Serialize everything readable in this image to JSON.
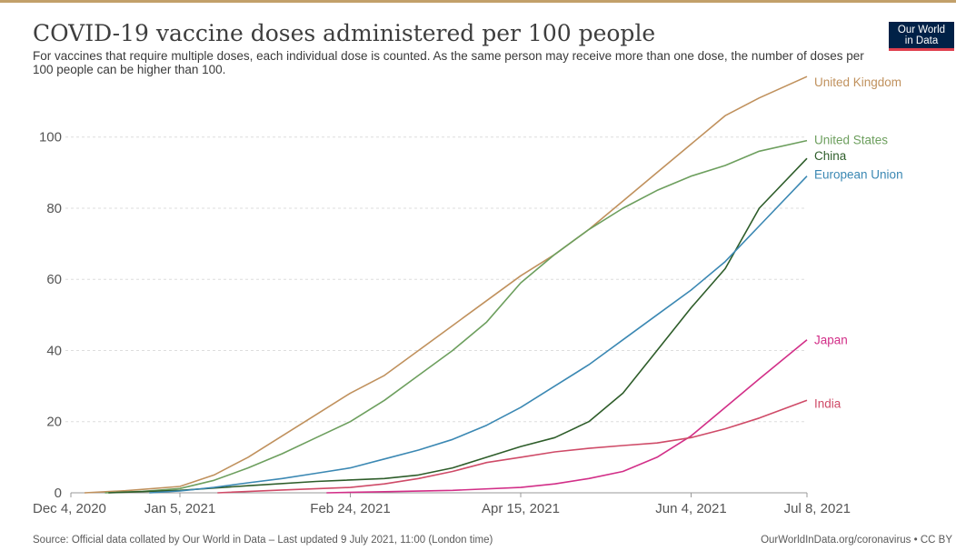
{
  "logo": {
    "line1": "Our World",
    "line2": "in Data"
  },
  "footer": {
    "source": "Source: Official data collated by Our World in Data – Last updated 9 July 2021, 11:00 (London time)",
    "link": "OurWorldInData.org/coronavirus • CC BY"
  },
  "chart_data": {
    "type": "line",
    "title": "COVID-19 vaccine doses administered per 100 people",
    "subtitle": "For vaccines that require multiple doses, each individual dose is counted. As the same person may receive more than one dose, the number of doses per 100 people can be higher than 100.",
    "xlabel": "",
    "ylabel": "",
    "x_ticks": [
      "Dec 4, 2020",
      "Jan 5, 2021",
      "Feb 24, 2021",
      "Apr 15, 2021",
      "Jun 4, 2021",
      "Jul 8, 2021"
    ],
    "xlim": [
      "2020-12-04",
      "2021-07-08"
    ],
    "y_ticks": [
      0,
      20,
      40,
      60,
      80,
      100
    ],
    "ylim": [
      0,
      115
    ],
    "grid": "horizontal dashed",
    "legend": "inline labels at line ends (right)",
    "series": [
      {
        "name": "United Kingdom",
        "color": "#c0915d",
        "points": [
          [
            "2020-12-08",
            0
          ],
          [
            "2020-12-20",
            0.6
          ],
          [
            "2021-01-05",
            1.8
          ],
          [
            "2021-01-15",
            5
          ],
          [
            "2021-01-25",
            10
          ],
          [
            "2021-02-04",
            16
          ],
          [
            "2021-02-14",
            22
          ],
          [
            "2021-02-24",
            28
          ],
          [
            "2021-03-06",
            33
          ],
          [
            "2021-03-16",
            40
          ],
          [
            "2021-03-26",
            47
          ],
          [
            "2021-04-05",
            54
          ],
          [
            "2021-04-15",
            61
          ],
          [
            "2021-04-25",
            67
          ],
          [
            "2021-05-05",
            74
          ],
          [
            "2021-05-15",
            82
          ],
          [
            "2021-05-25",
            90
          ],
          [
            "2021-06-04",
            98
          ],
          [
            "2021-06-14",
            106
          ],
          [
            "2021-06-24",
            111
          ],
          [
            "2021-07-08",
            117
          ]
        ]
      },
      {
        "name": "United States",
        "color": "#6d9f5e",
        "points": [
          [
            "2020-12-14",
            0
          ],
          [
            "2020-12-25",
            0.4
          ],
          [
            "2021-01-05",
            1.2
          ],
          [
            "2021-01-15",
            3.5
          ],
          [
            "2021-01-25",
            7
          ],
          [
            "2021-02-04",
            11
          ],
          [
            "2021-02-14",
            15.5
          ],
          [
            "2021-02-24",
            20
          ],
          [
            "2021-03-06",
            26
          ],
          [
            "2021-03-16",
            33
          ],
          [
            "2021-03-26",
            40
          ],
          [
            "2021-04-05",
            48
          ],
          [
            "2021-04-15",
            59
          ],
          [
            "2021-04-25",
            67
          ],
          [
            "2021-05-05",
            74
          ],
          [
            "2021-05-15",
            80
          ],
          [
            "2021-05-25",
            85
          ],
          [
            "2021-06-04",
            89
          ],
          [
            "2021-06-14",
            92
          ],
          [
            "2021-06-24",
            96
          ],
          [
            "2021-07-08",
            99
          ]
        ]
      },
      {
        "name": "China",
        "color": "#2e5d2a",
        "points": [
          [
            "2020-12-15",
            0
          ],
          [
            "2021-01-05",
            0.7
          ],
          [
            "2021-01-25",
            2
          ],
          [
            "2021-02-14",
            3.2
          ],
          [
            "2021-03-06",
            4
          ],
          [
            "2021-03-16",
            5
          ],
          [
            "2021-03-26",
            7
          ],
          [
            "2021-04-05",
            10
          ],
          [
            "2021-04-15",
            13
          ],
          [
            "2021-04-25",
            15.5
          ],
          [
            "2021-05-05",
            20
          ],
          [
            "2021-05-15",
            28
          ],
          [
            "2021-05-25",
            40
          ],
          [
            "2021-06-04",
            52
          ],
          [
            "2021-06-14",
            63
          ],
          [
            "2021-06-24",
            80
          ],
          [
            "2021-07-08",
            94
          ]
        ]
      },
      {
        "name": "European Union",
        "color": "#3b88b3",
        "points": [
          [
            "2020-12-27",
            0
          ],
          [
            "2021-01-05",
            0.5
          ],
          [
            "2021-01-15",
            1.5
          ],
          [
            "2021-01-25",
            2.8
          ],
          [
            "2021-02-04",
            4
          ],
          [
            "2021-02-14",
            5.5
          ],
          [
            "2021-02-24",
            7
          ],
          [
            "2021-03-06",
            9.5
          ],
          [
            "2021-03-16",
            12
          ],
          [
            "2021-03-26",
            15
          ],
          [
            "2021-04-05",
            19
          ],
          [
            "2021-04-15",
            24
          ],
          [
            "2021-04-25",
            30
          ],
          [
            "2021-05-05",
            36
          ],
          [
            "2021-05-15",
            43
          ],
          [
            "2021-05-25",
            50
          ],
          [
            "2021-06-04",
            57
          ],
          [
            "2021-06-14",
            65
          ],
          [
            "2021-06-24",
            75
          ],
          [
            "2021-07-08",
            89
          ]
        ]
      },
      {
        "name": "Japan",
        "color": "#d22f88",
        "points": [
          [
            "2021-02-17",
            0
          ],
          [
            "2021-03-06",
            0.3
          ],
          [
            "2021-03-26",
            0.7
          ],
          [
            "2021-04-15",
            1.5
          ],
          [
            "2021-04-25",
            2.5
          ],
          [
            "2021-05-05",
            4
          ],
          [
            "2021-05-15",
            6
          ],
          [
            "2021-05-25",
            10
          ],
          [
            "2021-06-04",
            16
          ],
          [
            "2021-06-14",
            24
          ],
          [
            "2021-06-24",
            32
          ],
          [
            "2021-07-08",
            43
          ]
        ]
      },
      {
        "name": "India",
        "color": "#cf4b68",
        "points": [
          [
            "2021-01-16",
            0
          ],
          [
            "2021-02-04",
            0.8
          ],
          [
            "2021-02-24",
            1.5
          ],
          [
            "2021-03-06",
            2.5
          ],
          [
            "2021-03-16",
            4
          ],
          [
            "2021-03-26",
            6
          ],
          [
            "2021-04-05",
            8.5
          ],
          [
            "2021-04-15",
            10
          ],
          [
            "2021-04-25",
            11.5
          ],
          [
            "2021-05-05",
            12.5
          ],
          [
            "2021-05-15",
            13.3
          ],
          [
            "2021-05-25",
            14
          ],
          [
            "2021-06-04",
            15.5
          ],
          [
            "2021-06-14",
            18
          ],
          [
            "2021-06-24",
            21
          ],
          [
            "2021-07-08",
            26
          ]
        ]
      }
    ]
  }
}
